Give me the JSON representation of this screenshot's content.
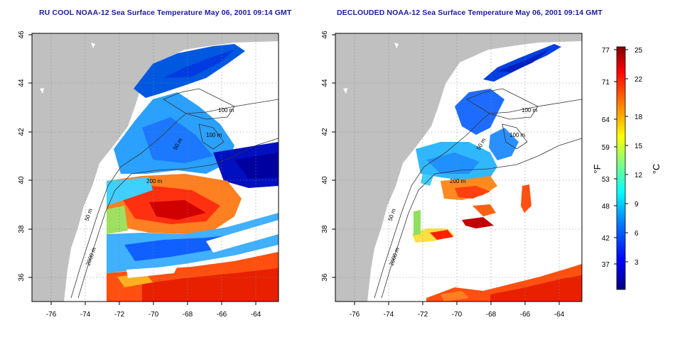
{
  "maps": [
    {
      "id": "left",
      "title": "RU COOL NOAA-12 Sea Surface Temperature May 06, 2001 09:14 GMT",
      "lon_ticks": [
        "-76",
        "-74",
        "-72",
        "-70",
        "-68",
        "-66",
        "-64"
      ],
      "lat_ticks": [
        "36",
        "38",
        "40",
        "42",
        "44",
        "46"
      ],
      "contour_labels": [
        "100 m",
        "100 m",
        "50 m",
        "200 m",
        "50 m",
        "2000 m"
      ]
    },
    {
      "id": "right",
      "title": "DECLOUDED NOAA-12 Sea Surface Temperature May 06, 2001 09:14 GMT",
      "lon_ticks": [
        "-76",
        "-74",
        "-72",
        "-70",
        "-68",
        "-66",
        "-64"
      ],
      "lat_ticks": [
        "36",
        "38",
        "40",
        "42",
        "44",
        "46"
      ],
      "contour_labels": [
        "100 m",
        "100 m",
        "50 m",
        "200 m",
        "50 m",
        "2000 m"
      ]
    }
  ],
  "colorbar": {
    "fahrenheit_label": "°F",
    "celsius_label": "°C",
    "fahrenheit_ticks": [
      "77",
      "71",
      "64",
      "59",
      "53",
      "48",
      "42",
      "37"
    ],
    "celsius_ticks": [
      "25",
      "22",
      "18",
      "15",
      "12",
      "9",
      "6",
      "3"
    ],
    "colors": [
      "#000080",
      "#0000ff",
      "#0080ff",
      "#00c0ff",
      "#00ffff",
      "#80ff80",
      "#ffff00",
      "#ff8000",
      "#ff0000",
      "#800000"
    ]
  },
  "colors": {
    "land": "#c0c0c0",
    "no_data": "#ffffff",
    "title": "#1a1aa0"
  }
}
